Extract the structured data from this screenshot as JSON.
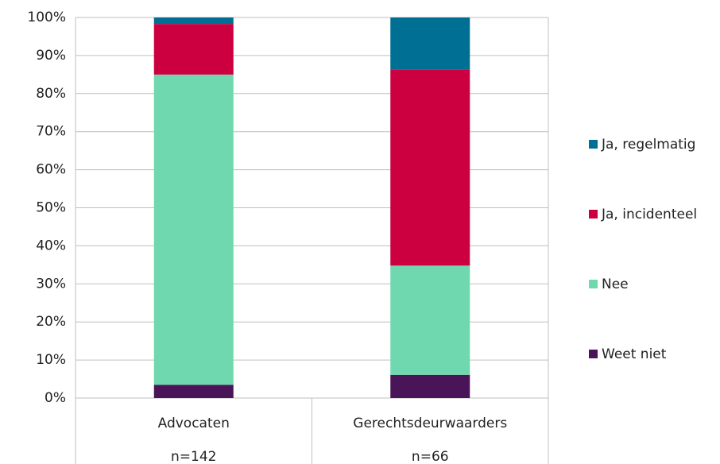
{
  "chart_data": {
    "type": "stacked_bar",
    "categories": [
      "Advocaten",
      "Gerechtsdeurwaarders"
    ],
    "category_sublabels": [
      "n=142",
      "n=66"
    ],
    "series": [
      {
        "name": "Weet niet",
        "color": "#4a1459",
        "values": [
          3.5,
          6.1
        ]
      },
      {
        "name": "Nee",
        "color": "#70d8ae",
        "values": [
          81.5,
          28.7
        ]
      },
      {
        "name": "Ja, incidenteel",
        "color": "#cc0040",
        "values": [
          13.3,
          51.5
        ]
      },
      {
        "name": "Ja, regelmatig",
        "color": "#006f94",
        "values": [
          1.7,
          13.7
        ]
      }
    ],
    "ylim": [
      0,
      100
    ],
    "yticks": [
      {
        "value": 0,
        "label": "0%"
      },
      {
        "value": 10,
        "label": "10%"
      },
      {
        "value": 20,
        "label": "20%"
      },
      {
        "value": 30,
        "label": "30%"
      },
      {
        "value": 40,
        "label": "40%"
      },
      {
        "value": 50,
        "label": "50%"
      },
      {
        "value": 60,
        "label": "60%"
      },
      {
        "value": 70,
        "label": "70%"
      },
      {
        "value": 80,
        "label": "80%"
      },
      {
        "value": 90,
        "label": "90%"
      },
      {
        "value": 100,
        "label": "100%"
      }
    ],
    "grid": true,
    "legend": "right"
  }
}
